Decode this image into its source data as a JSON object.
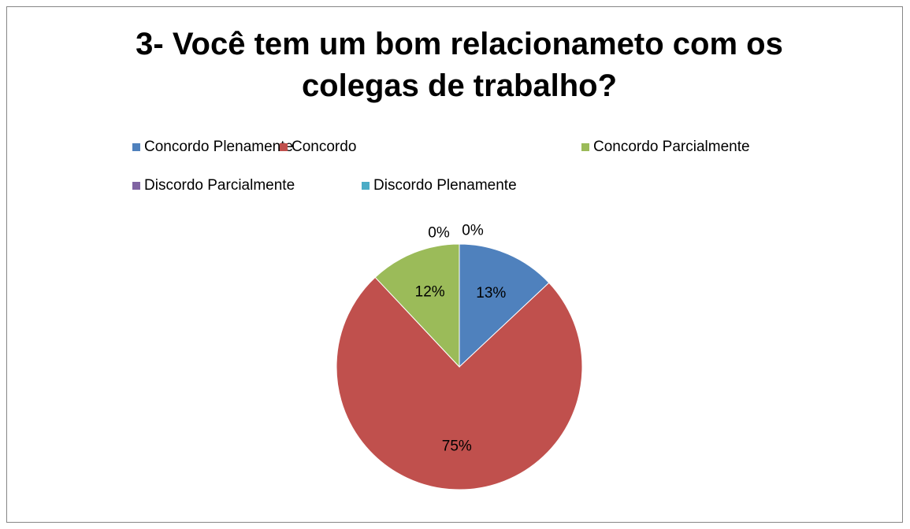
{
  "chart_data": {
    "type": "pie",
    "title": "3- Você tem um bom relacionameto com os colegas de trabalho?",
    "categories": [
      "Concordo Plenamente",
      "Concordo",
      "Concordo Parcialmente",
      "Discordo Parcialmente",
      "Discordo Plenamente"
    ],
    "values": [
      13,
      75,
      12,
      0,
      0
    ],
    "value_labels": [
      "13%",
      "75%",
      "12%",
      "0%",
      "0%"
    ],
    "colors": [
      "#4f81bd",
      "#c0504d",
      "#9bbb59",
      "#8064a2",
      "#4bacc6"
    ],
    "legend": "top"
  }
}
